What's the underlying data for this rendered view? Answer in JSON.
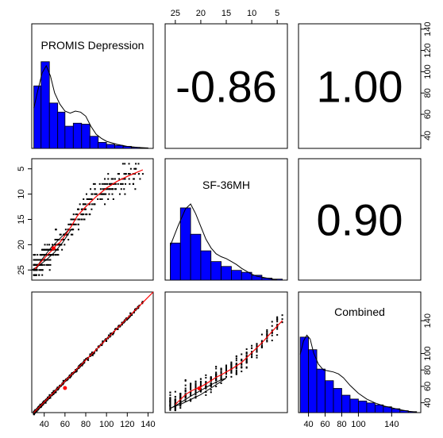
{
  "chart_data": {
    "type": "scatter-matrix",
    "variables": [
      "PROMIS Depression",
      "SF-36MH",
      "Combined"
    ],
    "correlations": [
      {
        "row": 0,
        "col": 1,
        "label": "-0.86",
        "value": -0.86
      },
      {
        "row": 0,
        "col": 2,
        "label": "1.00",
        "value": 1.0
      },
      {
        "row": 1,
        "col": 2,
        "label": "0.90",
        "value": 0.9
      }
    ],
    "axes": {
      "promis": {
        "range": [
          28,
          145
        ],
        "ticks": [
          40,
          60,
          80,
          100,
          120,
          140
        ]
      },
      "sf36": {
        "range": [
          3,
          27
        ],
        "ticks": [
          25,
          20,
          15,
          10,
          5
        ],
        "ticks_left": [
          5,
          10,
          15,
          20,
          25
        ],
        "reversed": true
      },
      "combined": {
        "range": [
          28,
          175
        ],
        "ticks": [
          40,
          60,
          80,
          100,
          140
        ],
        "ticks_right": [
          40,
          60,
          80,
          100,
          140
        ]
      }
    },
    "histograms": {
      "promis": {
        "bins": [
          [
            30,
            37
          ],
          [
            37,
            45
          ],
          [
            45,
            53
          ],
          [
            53,
            60
          ],
          [
            60,
            68
          ],
          [
            68,
            76
          ],
          [
            76,
            84
          ],
          [
            84,
            92
          ],
          [
            92,
            100
          ],
          [
            100,
            108
          ],
          [
            108,
            116
          ],
          [
            116,
            124
          ],
          [
            124,
            132
          ],
          [
            132,
            140
          ]
        ],
        "counts": [
          62,
          86,
          45,
          36,
          22,
          25,
          24,
          12,
          6,
          4,
          3,
          2,
          1,
          0.5
        ],
        "density": [
          [
            30,
            40
          ],
          [
            34,
            58
          ],
          [
            38,
            75
          ],
          [
            42,
            82
          ],
          [
            46,
            72
          ],
          [
            50,
            55
          ],
          [
            55,
            44
          ],
          [
            60,
            37
          ],
          [
            65,
            35
          ],
          [
            70,
            37
          ],
          [
            75,
            36
          ],
          [
            80,
            32
          ],
          [
            85,
            22
          ],
          [
            90,
            14
          ],
          [
            95,
            10
          ],
          [
            100,
            7
          ],
          [
            110,
            4
          ],
          [
            120,
            2
          ],
          [
            130,
            1
          ],
          [
            140,
            0.4
          ]
        ]
      },
      "sf36": {
        "bins": [
          [
            26,
            24
          ],
          [
            24,
            22
          ],
          [
            22,
            20
          ],
          [
            20,
            18
          ],
          [
            18,
            16
          ],
          [
            16,
            14
          ],
          [
            14,
            12
          ],
          [
            12,
            10
          ],
          [
            10,
            8
          ],
          [
            8,
            6
          ],
          [
            6,
            4
          ]
        ],
        "counts": [
          38,
          74,
          47,
          30,
          19,
          14,
          10,
          8,
          5,
          2,
          1
        ],
        "density": [
          [
            26,
            35
          ],
          [
            24.5,
            55
          ],
          [
            23,
            73
          ],
          [
            22,
            78
          ],
          [
            21,
            68
          ],
          [
            20,
            55
          ],
          [
            19,
            42
          ],
          [
            18,
            33
          ],
          [
            17,
            27
          ],
          [
            16,
            24
          ],
          [
            15,
            22
          ],
          [
            14,
            19
          ],
          [
            13,
            16
          ],
          [
            12,
            12
          ],
          [
            11,
            9
          ],
          [
            10,
            6
          ],
          [
            9,
            4
          ],
          [
            8,
            3
          ],
          [
            7,
            2
          ],
          [
            6,
            1
          ],
          [
            5,
            0.5
          ]
        ]
      },
      "combined": {
        "bins": [
          [
            30,
            40
          ],
          [
            40,
            50
          ],
          [
            50,
            60
          ],
          [
            60,
            70
          ],
          [
            70,
            80
          ],
          [
            80,
            90
          ],
          [
            90,
            100
          ],
          [
            100,
            110
          ],
          [
            110,
            120
          ],
          [
            120,
            130
          ],
          [
            130,
            140
          ],
          [
            140,
            150
          ],
          [
            150,
            160
          ],
          [
            160,
            170
          ]
        ],
        "counts": [
          78,
          65,
          45,
          33,
          25,
          18,
          14,
          12,
          10,
          8,
          6,
          4,
          2,
          1
        ],
        "density": [
          [
            30,
            60
          ],
          [
            34,
            74
          ],
          [
            38,
            80
          ],
          [
            42,
            76
          ],
          [
            46,
            62
          ],
          [
            52,
            50
          ],
          [
            58,
            44
          ],
          [
            64,
            43
          ],
          [
            70,
            42
          ],
          [
            76,
            40
          ],
          [
            82,
            36
          ],
          [
            90,
            28
          ],
          [
            100,
            20
          ],
          [
            110,
            14
          ],
          [
            120,
            10
          ],
          [
            130,
            7
          ],
          [
            140,
            5
          ],
          [
            150,
            3
          ],
          [
            160,
            1.5
          ],
          [
            170,
            0.5
          ]
        ]
      }
    },
    "scatter_promis_sf36": {
      "centroid": [
        49,
        20.7
      ],
      "loess": [
        [
          31,
          24.8
        ],
        [
          36,
          23.6
        ],
        [
          40,
          22.7
        ],
        [
          44,
          21.8
        ],
        [
          48,
          21.0
        ],
        [
          52,
          20.0
        ],
        [
          55,
          19.6
        ],
        [
          60,
          18.2
        ],
        [
          66,
          16.4
        ],
        [
          72,
          14.3
        ],
        [
          80,
          12.5
        ],
        [
          90,
          10.5
        ],
        [
          100,
          8.8
        ],
        [
          110,
          7.5
        ],
        [
          120,
          6.5
        ],
        [
          135,
          5.2
        ]
      ],
      "ellipse": [
        [
          32,
          25
        ],
        [
          28,
          25
        ],
        [
          33,
          24.4
        ],
        [
          42,
          23
        ],
        [
          50,
          21.5
        ],
        [
          58,
          19.5
        ],
        [
          64,
          17.6
        ],
        [
          66,
          17.0
        ],
        [
          63,
          17.2
        ],
        [
          55,
          18.8
        ],
        [
          47,
          20.5
        ],
        [
          40,
          22.3
        ],
        [
          35,
          23.7
        ],
        [
          32,
          25
        ]
      ]
    },
    "scatter_promis_combined": {
      "centroid": [
        60,
        58
      ],
      "line": [
        [
          30,
          28
        ],
        [
          145,
          175
        ]
      ]
    },
    "scatter_sf36_combined": {
      "centroid": [
        20.3,
        57.5
      ],
      "loess": [
        [
          25,
          38
        ],
        [
          24,
          44
        ],
        [
          23,
          50
        ],
        [
          22,
          54
        ],
        [
          21,
          57
        ],
        [
          20,
          59.5
        ],
        [
          19,
          63
        ],
        [
          18,
          67
        ],
        [
          17,
          71
        ],
        [
          16,
          74
        ],
        [
          14,
          81
        ],
        [
          12,
          89
        ],
        [
          10,
          101
        ],
        [
          8,
          113
        ],
        [
          6,
          127
        ],
        [
          4,
          140
        ]
      ],
      "ellipse": [
        [
          25,
          36
        ],
        [
          26,
          33
        ],
        [
          24,
          40
        ],
        [
          22,
          48
        ],
        [
          20,
          55
        ],
        [
          18,
          62
        ],
        [
          16,
          68
        ],
        [
          15,
          70
        ],
        [
          16,
          66
        ],
        [
          18,
          58
        ],
        [
          20,
          50
        ],
        [
          22,
          44
        ],
        [
          24,
          38
        ],
        [
          25,
          36
        ]
      ]
    },
    "colors": {
      "bars": "#0000ff",
      "fit": "#ff0000",
      "points": "#000000",
      "density": "#000000"
    }
  }
}
